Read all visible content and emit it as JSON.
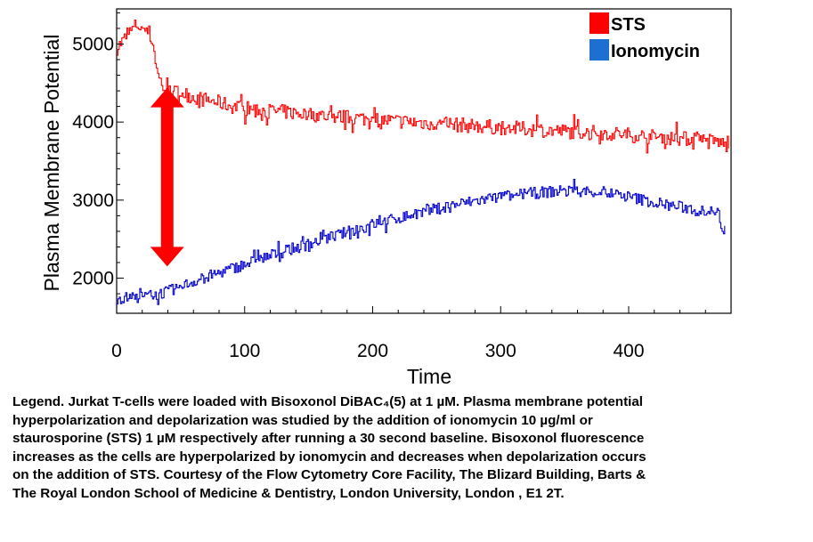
{
  "chart_data": {
    "type": "line",
    "xlabel": "Time",
    "ylabel": "Plasma Membrane Potential",
    "xlim": [
      0,
      480
    ],
    "ylim": [
      1550,
      5450
    ],
    "xticks": [
      0,
      100,
      200,
      300,
      400
    ],
    "yticks": [
      2000,
      3000,
      4000,
      5000
    ],
    "x_tick_labels": [
      "0",
      "100",
      "200",
      "300",
      "400"
    ],
    "y_tick_labels": [
      "2000",
      "3000",
      "4000",
      "5000"
    ],
    "legend_position": "top-right",
    "annotation": "double-headed red arrow between the two traces near time 40",
    "series": [
      {
        "name": "STS",
        "color": "#ff0000",
        "x": [
          0,
          5,
          10,
          15,
          20,
          25,
          28,
          32,
          36,
          40,
          50,
          60,
          70,
          80,
          90,
          100,
          115,
          130,
          150,
          170,
          190,
          210,
          230,
          250,
          270,
          290,
          310,
          330,
          350,
          370,
          390,
          410,
          430,
          450,
          470,
          478
        ],
        "y": [
          4950,
          5050,
          5150,
          5250,
          5200,
          5150,
          5000,
          4600,
          4450,
          4380,
          4380,
          4320,
          4280,
          4250,
          4200,
          4180,
          4150,
          4130,
          4100,
          4070,
          4050,
          4020,
          4000,
          3980,
          3960,
          3940,
          3920,
          3900,
          3880,
          3870,
          3850,
          3820,
          3800,
          3780,
          3750,
          3680
        ]
      },
      {
        "name": "Ionomycin",
        "color": "#0000cc",
        "x": [
          0,
          10,
          20,
          30,
          40,
          50,
          60,
          80,
          100,
          120,
          140,
          160,
          180,
          200,
          220,
          240,
          260,
          280,
          300,
          320,
          340,
          360,
          380,
          400,
          420,
          440,
          460,
          470,
          475
        ],
        "y": [
          1740,
          1750,
          1760,
          1790,
          1830,
          1890,
          1960,
          2070,
          2180,
          2290,
          2390,
          2490,
          2590,
          2690,
          2770,
          2850,
          2930,
          2990,
          3040,
          3080,
          3110,
          3120,
          3100,
          3040,
          2970,
          2910,
          2870,
          2820,
          2500
        ]
      }
    ]
  },
  "caption": {
    "lines": [
      "Legend. Jurkat T-cells were loaded with Bisoxonol DiBAC₄(5) at 1 µM. Plasma membrane potential",
      "hyperpolarization and depolarization was studied by the addition of ionomycin  10 µg/ml  or",
      "staurosporine (STS) 1 µM respectively after running a 30 second baseline. Bisoxonol fluorescence",
      "increases as the cells are hyperpolarized by ionomycin and decreases when depolarization occurs",
      " on the addition of STS. Courtesy of the Flow Cytometry Core Facility, The Blizard Building, Barts &",
      "The Royal London School of Medicine & Dentistry, London University, London , E1 2T."
    ]
  }
}
